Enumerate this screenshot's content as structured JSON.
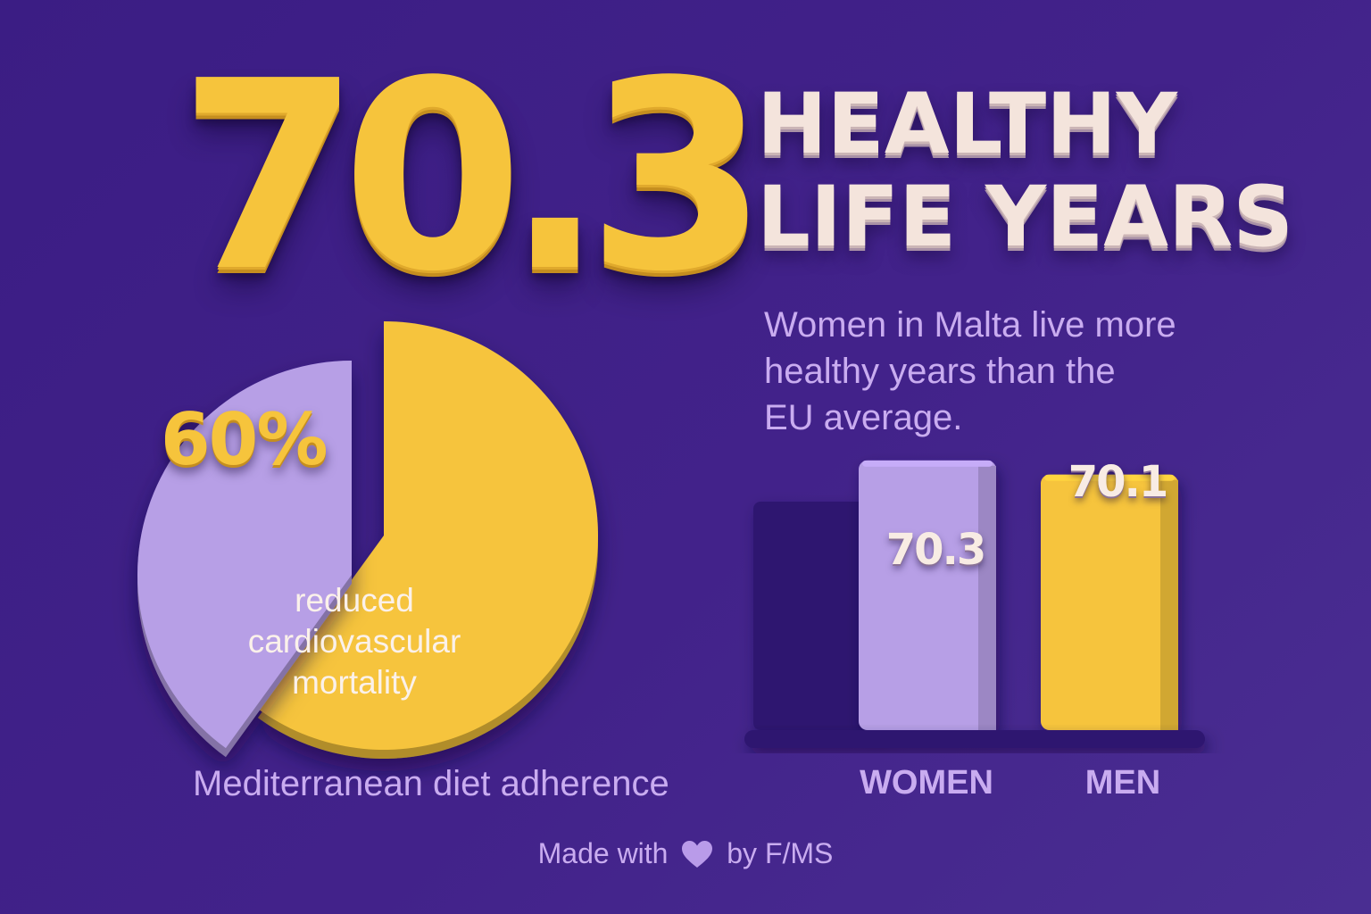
{
  "hero": {
    "value": "70.3",
    "headline_line1": "HEALTHY",
    "headline_line2": "LIFE YEARS"
  },
  "subtitle": {
    "line1": "Women in Malta live more",
    "line2": "healthy years than the",
    "line3": "EU average."
  },
  "footer": {
    "made_with": "Made with",
    "by": "by F/MS",
    "icon": "heart-icon"
  },
  "colors": {
    "background": "#3f2088",
    "yellow": "#f6c43c",
    "lavender": "#b79fe6",
    "dark_bar": "#2d1670",
    "text_light": "#f4e4dc",
    "text_lavender": "#c9acf0"
  },
  "chart_data": [
    {
      "type": "pie",
      "title": "",
      "slices": [
        {
          "label": "60%",
          "value": 60,
          "color": "#f6c43c"
        },
        {
          "label_lines": [
            "reduced",
            "cardiovascular",
            "mortality"
          ],
          "value": 40,
          "color": "#b79fe6"
        }
      ],
      "caption": "Mediterranean diet adherence"
    },
    {
      "type": "bar",
      "categories": [
        "WOMEN",
        "MEN"
      ],
      "values": [
        70.3,
        70.1
      ],
      "value_labels": [
        "70.3",
        "70.1"
      ],
      "colors": [
        "#b79fe6",
        "#f6c43c"
      ],
      "reference_bar": {
        "color": "#2d1670"
      },
      "ylim": [
        66.5,
        70.6
      ],
      "grid": false
    }
  ]
}
